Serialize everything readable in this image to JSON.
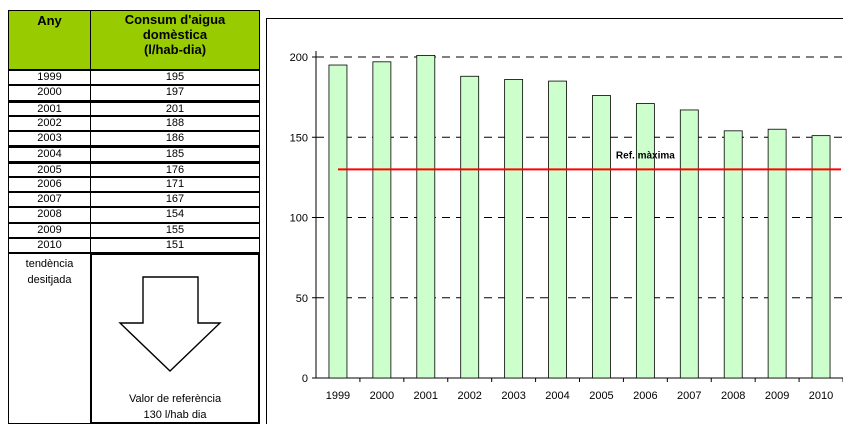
{
  "table": {
    "header_year": "Any",
    "header_consumption": [
      "Consum d'aigua",
      "domèstica",
      "(l/hab-dia)"
    ],
    "rows": [
      {
        "year": "1999",
        "value": "195"
      },
      {
        "year": "2000",
        "value": "197"
      },
      {
        "year": "2001",
        "value": "201"
      },
      {
        "year": "2002",
        "value": "188"
      },
      {
        "year": "2003",
        "value": "186"
      },
      {
        "year": "2004",
        "value": "185"
      },
      {
        "year": "2005",
        "value": "176"
      },
      {
        "year": "2006",
        "value": "171"
      },
      {
        "year": "2007",
        "value": "167"
      },
      {
        "year": "2008",
        "value": "154"
      },
      {
        "year": "2009",
        "value": "155"
      },
      {
        "year": "2010",
        "value": "151"
      }
    ],
    "trend_label": [
      "tendència",
      "desitjada"
    ],
    "reference_text": [
      "Valor de referència",
      "130  l/hab dia"
    ]
  },
  "chart_data": {
    "type": "bar",
    "categories": [
      "1999",
      "2000",
      "2001",
      "2002",
      "2003",
      "2004",
      "2005",
      "2006",
      "2007",
      "2008",
      "2009",
      "2010"
    ],
    "values": [
      195,
      197,
      201,
      188,
      186,
      185,
      176,
      171,
      167,
      154,
      155,
      151
    ],
    "ylim": [
      0,
      200
    ],
    "yticks": [
      0,
      50,
      100,
      150,
      200
    ],
    "grid": "dashed horizontal",
    "bar_color": "#ccffcc",
    "bar_edge_color": "#000000",
    "reference_line": {
      "value": 130,
      "label": "Ref. màxima",
      "color": "#ff0000"
    },
    "title": "",
    "xlabel": "",
    "ylabel": ""
  }
}
